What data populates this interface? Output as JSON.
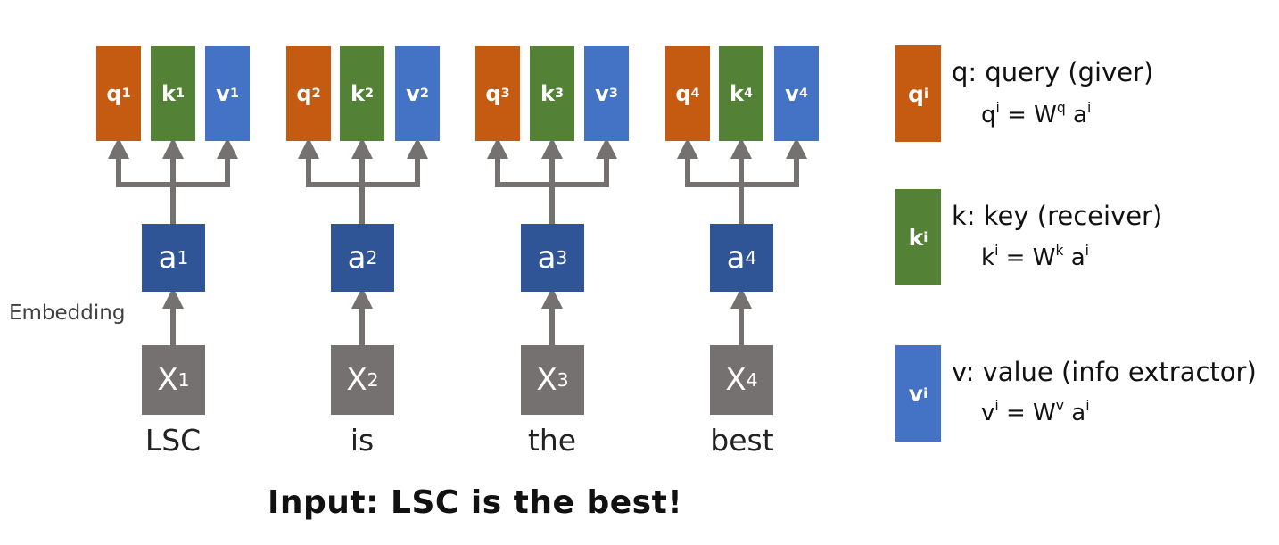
{
  "columns": [
    {
      "q": "q",
      "k": "k",
      "v": "v",
      "sup": "1",
      "a": "a",
      "x": "X",
      "word": "LSC"
    },
    {
      "q": "q",
      "k": "k",
      "v": "v",
      "sup": "2",
      "a": "a",
      "x": "X",
      "word": "is"
    },
    {
      "q": "q",
      "k": "k",
      "v": "v",
      "sup": "3",
      "a": "a",
      "x": "X",
      "word": "the"
    },
    {
      "q": "q",
      "k": "k",
      "v": "v",
      "sup": "4",
      "a": "a",
      "x": "X",
      "word": "best"
    }
  ],
  "embedding_label": "Embedding",
  "input_label": "Input: LSC is the best!",
  "legend": {
    "q": {
      "box": "q",
      "box_sup": "i",
      "title": "q: query (giver)",
      "f_lhs": "q",
      "f_lhs_sup": "i",
      "f_eq": " = W",
      "f_w_sup": "q",
      "f_a": " a",
      "f_a_sup": "i"
    },
    "k": {
      "box": "k",
      "box_sup": "i",
      "title": "k: key (receiver)",
      "f_lhs": "k",
      "f_lhs_sup": "i",
      "f_eq": " = W",
      "f_w_sup": "k",
      "f_a": " a",
      "f_a_sup": "i"
    },
    "v": {
      "box": "v",
      "box_sup": "i",
      "title": "v: value (info extractor)",
      "f_lhs": "v",
      "f_lhs_sup": "i",
      "f_eq": " = W",
      "f_w_sup": "v",
      "f_a": " a",
      "f_a_sup": "i"
    }
  },
  "colors": {
    "query": "#c55a11",
    "key": "#538135",
    "value": "#4472c4",
    "embedding": "#2f5597",
    "input": "#767171",
    "arrow": "#767171"
  }
}
